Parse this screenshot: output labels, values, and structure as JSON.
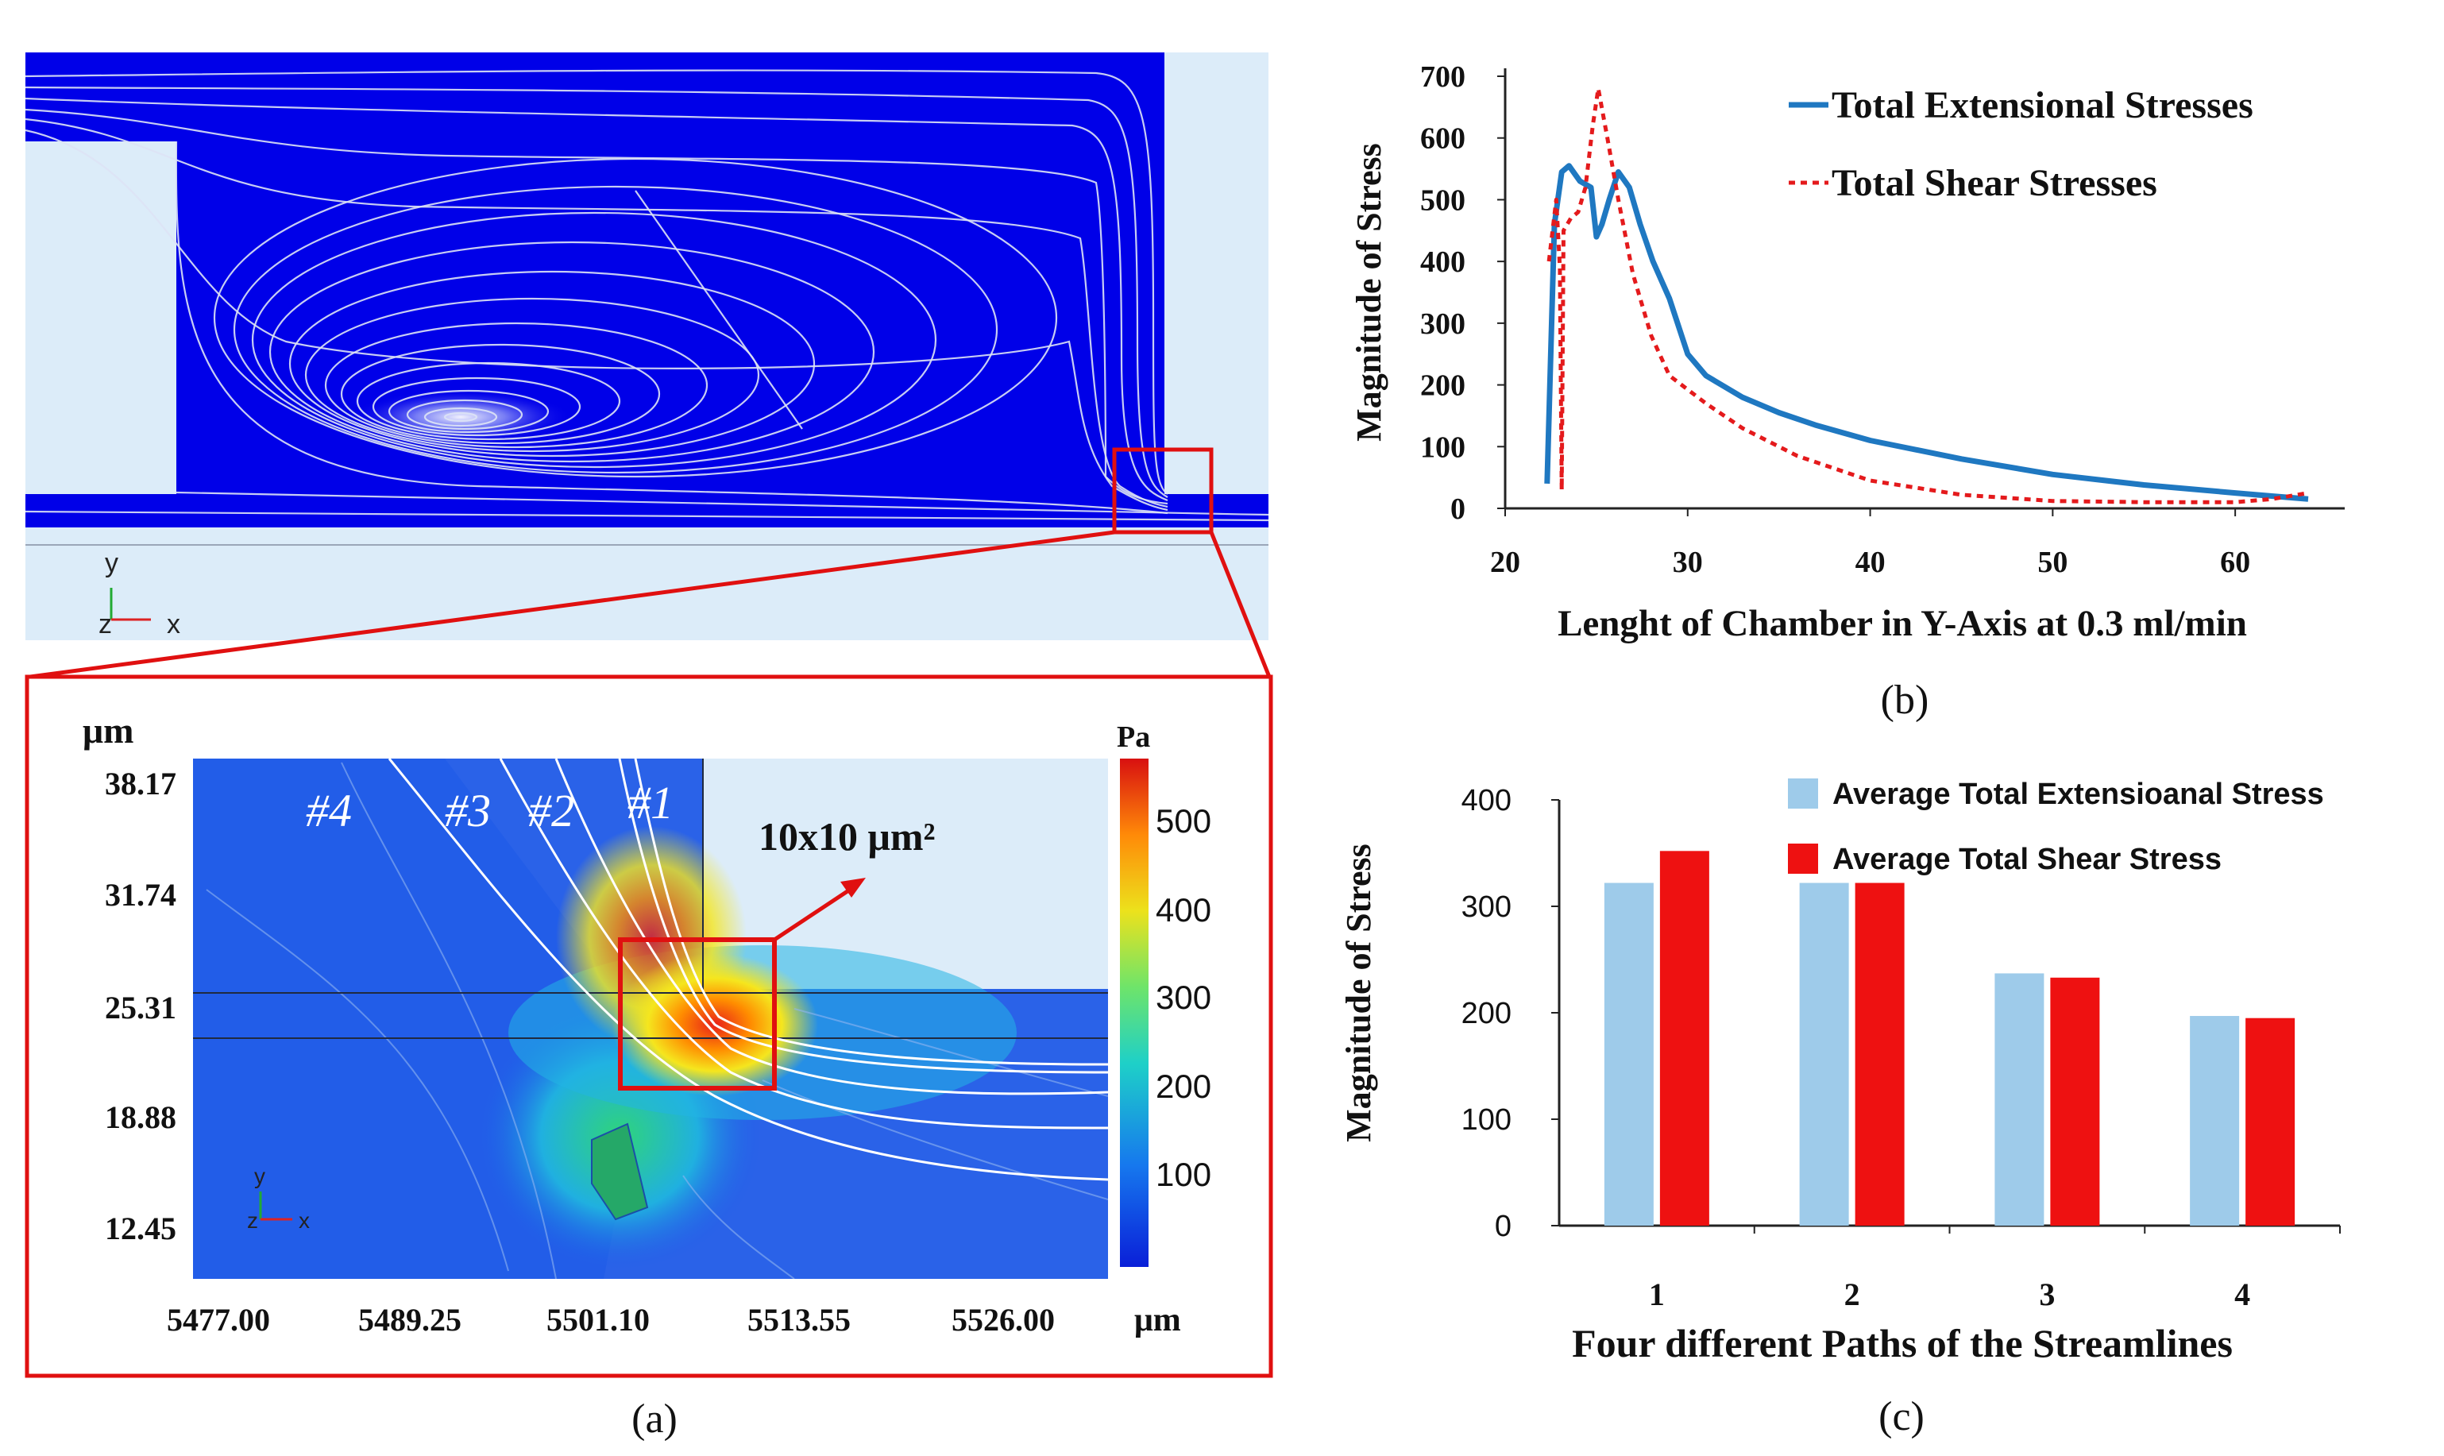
{
  "panel_a": {
    "caption": "(a)",
    "simulation_axes": {
      "y": "y",
      "z": "z",
      "x": "x"
    },
    "zoom": {
      "y_unit": "μm",
      "x_unit": "μm",
      "y_ticks": [
        "38.17",
        "31.74",
        "25.31",
        "18.88",
        "12.45"
      ],
      "x_ticks": [
        "5477.00",
        "5489.25",
        "5501.10",
        "5513.55",
        "5526.00"
      ],
      "streamlines": [
        "#4",
        "#3",
        "#2",
        "#1"
      ],
      "region_label": "10x10 μm²",
      "colorbar": {
        "unit": "Pa",
        "ticks": [
          "500",
          "400",
          "300",
          "200",
          "100"
        ]
      }
    }
  },
  "chart_data": [
    {
      "id": "b",
      "type": "line",
      "caption": "(b)",
      "title": "",
      "xlabel": "Lenght of Chamber in Y-Axis at 0.3 ml/min",
      "ylabel": "Magnitude of Stress",
      "xlim": [
        20,
        66
      ],
      "ylim": [
        0,
        700
      ],
      "xticks": [
        20,
        30,
        40,
        50,
        60
      ],
      "yticks": [
        0,
        100,
        200,
        300,
        400,
        500,
        600,
        700
      ],
      "legend_position": "top-right",
      "series": [
        {
          "name": "Total Extensional Stresses",
          "color": "#1f78c1",
          "style": "solid",
          "x": [
            22.3,
            22.7,
            23.1,
            23.5,
            24.1,
            24.7,
            25.0,
            25.3,
            25.7,
            26.2,
            26.8,
            27.4,
            28.1,
            29.0,
            30.0,
            31.0,
            33,
            35,
            37,
            40,
            45,
            50,
            55,
            60,
            62,
            64
          ],
          "y": [
            40,
            460,
            545,
            555,
            530,
            520,
            440,
            460,
            500,
            545,
            520,
            460,
            400,
            340,
            250,
            215,
            180,
            155,
            135,
            110,
            80,
            55,
            38,
            25,
            20,
            15
          ]
        },
        {
          "name": "Total Shear Stresses",
          "color": "#e41a1c",
          "style": "dotted",
          "x": [
            22.4,
            22.8,
            23.0,
            23.1,
            23.2,
            23.6,
            24.0,
            24.4,
            24.8,
            25.1,
            25.6,
            26.2,
            27.0,
            28.0,
            29.0,
            31,
            33,
            36,
            40,
            45,
            50,
            55,
            60,
            62,
            64
          ],
          "y": [
            400,
            500,
            390,
            30,
            450,
            470,
            480,
            520,
            620,
            680,
            600,
            500,
            380,
            280,
            215,
            170,
            130,
            85,
            45,
            22,
            12,
            10,
            10,
            15,
            25
          ]
        }
      ]
    },
    {
      "id": "c",
      "type": "bar",
      "caption": "(c)",
      "title": "",
      "xlabel": "Four different Paths of the Streamlines",
      "ylabel": "Magnitude of Stress",
      "categories": [
        "1",
        "2",
        "3",
        "4"
      ],
      "ylim": [
        0,
        400
      ],
      "yticks": [
        0,
        100,
        200,
        300,
        400
      ],
      "legend_position": "top-right",
      "series": [
        {
          "name": "Average Total Extensioanal Stress",
          "color": "#9ecbea",
          "values": [
            322,
            322,
            237,
            197
          ]
        },
        {
          "name": "Average Total Shear Stress",
          "color": "#ee1111",
          "values": [
            352,
            322,
            233,
            195
          ]
        }
      ]
    }
  ]
}
